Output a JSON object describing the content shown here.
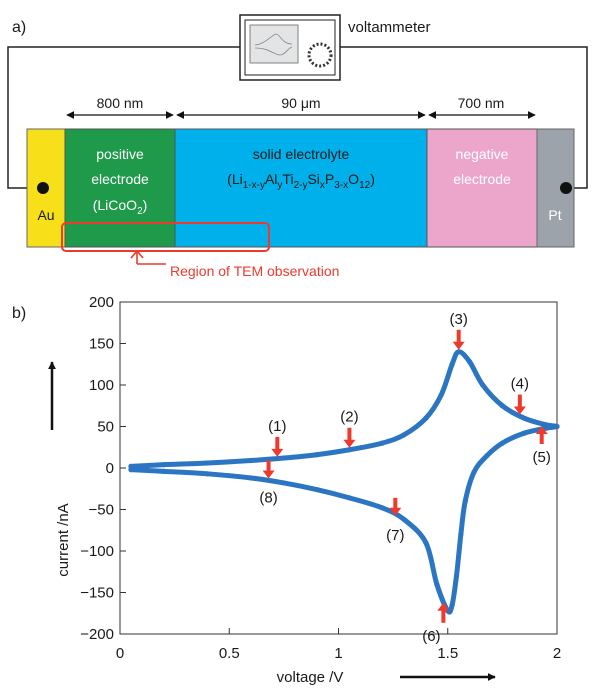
{
  "panel_a": {
    "label": "a)",
    "instrument_label": "voltammeter",
    "dimensions": [
      "800 nm",
      "90 μm",
      "700 nm"
    ],
    "layers": {
      "au": "Au",
      "positive": {
        "line1": "positive",
        "line2": "electrode",
        "formula_base": "LiCoO",
        "formula_sub": "2"
      },
      "electrolyte": {
        "line1": "solid electrolyte",
        "f": [
          {
            "text": "Li",
            "sub": false
          },
          {
            "text": "1-x-y",
            "sub": true
          },
          {
            "text": "Al",
            "sub": false
          },
          {
            "text": "y",
            "sub": true
          },
          {
            "text": "Ti",
            "sub": false
          },
          {
            "text": "2-y",
            "sub": true
          },
          {
            "text": "Si",
            "sub": false
          },
          {
            "text": "x",
            "sub": true
          },
          {
            "text": "P",
            "sub": false
          },
          {
            "text": "3-x",
            "sub": true
          },
          {
            "text": "O",
            "sub": false
          },
          {
            "text": "12",
            "sub": true
          }
        ]
      },
      "negative": {
        "line1": "negative",
        "line2": "electrode"
      },
      "pt": "Pt"
    },
    "tem_label": "Region of TEM observation",
    "colors": {
      "au": "#f7e01a",
      "positive": "#1f9a4a",
      "electrolyte": "#00b0ea",
      "negative": "#eca6cc",
      "pt": "#9da3aa",
      "annotation": "#ee3a2c"
    }
  },
  "panel_b": {
    "label": "b)"
  },
  "chart_data": {
    "type": "line",
    "xlabel": "voltage /V",
    "ylabel": "current /nA",
    "xlim": [
      0,
      2
    ],
    "ylim": [
      -200,
      200
    ],
    "xticks": [
      0,
      0.5,
      1,
      1.5,
      2
    ],
    "yticks": [
      -200,
      -150,
      -100,
      -50,
      0,
      50,
      100,
      150,
      200
    ],
    "series": [
      {
        "color": "#2c75c2",
        "x": [
          0.05,
          0.2,
          0.4,
          0.6,
          0.75,
          0.9,
          1.05,
          1.2,
          1.3,
          1.4,
          1.47,
          1.52,
          1.55,
          1.6,
          1.66,
          1.75,
          1.85,
          1.95,
          2.0,
          1.95,
          1.85,
          1.75,
          1.68,
          1.62,
          1.58,
          1.56,
          1.54,
          1.52,
          1.5,
          1.45,
          1.4,
          1.3,
          1.2,
          1.05,
          0.9,
          0.75,
          0.6,
          0.4,
          0.2,
          0.05
        ],
        "y": [
          2,
          4,
          6,
          9,
          12,
          16,
          22,
          30,
          40,
          60,
          88,
          125,
          140,
          128,
          100,
          75,
          60,
          52,
          50,
          48,
          42,
          30,
          15,
          -5,
          -40,
          -80,
          -130,
          -165,
          -172,
          -140,
          -90,
          -62,
          -48,
          -36,
          -26,
          -18,
          -12,
          -7,
          -4,
          -2
        ]
      }
    ],
    "annotations": [
      {
        "label": "(1)",
        "x": 0.72,
        "y": 11
      },
      {
        "label": "(2)",
        "x": 1.05,
        "y": 22
      },
      {
        "label": "(3)",
        "x": 1.55,
        "y": 140
      },
      {
        "label": "(4)",
        "x": 1.83,
        "y": 62
      },
      {
        "label": "(5)",
        "x": 1.93,
        "y": 53
      },
      {
        "label": "(6)",
        "x": 1.48,
        "y": -160
      },
      {
        "label": "(7)",
        "x": 1.26,
        "y": -60
      },
      {
        "label": "(8)",
        "x": 0.68,
        "y": -15
      }
    ],
    "grid": false,
    "legend": "none"
  }
}
